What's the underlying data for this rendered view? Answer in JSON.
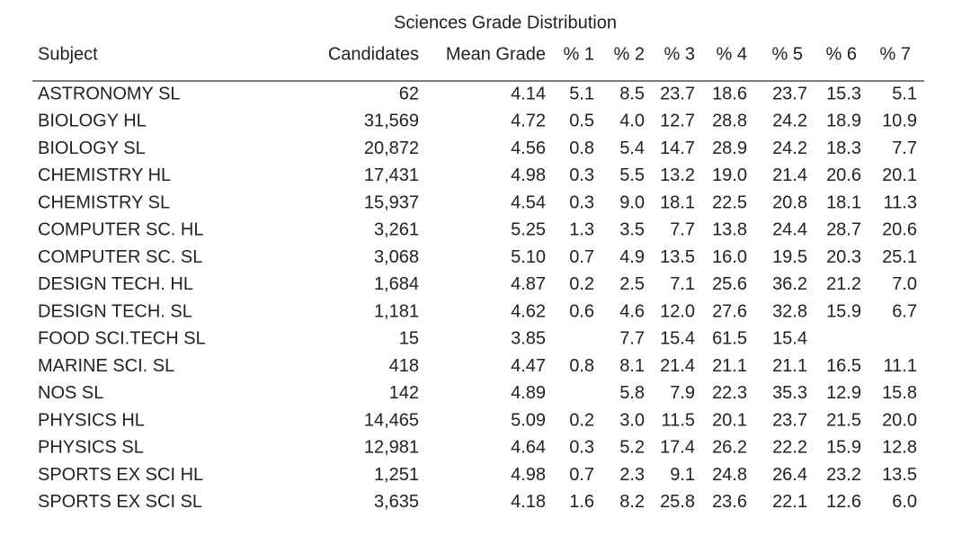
{
  "title": "Sciences Grade Distribution",
  "table": {
    "header": [
      "Subject",
      "Candidates",
      "Mean Grade",
      "% 1",
      "% 2",
      "% 3",
      "% 4",
      "% 5",
      "% 6",
      "% 7"
    ],
    "rows": [
      [
        "ASTRONOMY SL",
        "62",
        "4.14",
        "5.1",
        "8.5",
        "23.7",
        "18.6",
        "23.7",
        "15.3",
        "5.1"
      ],
      [
        "BIOLOGY HL",
        "31,569",
        "4.72",
        "0.5",
        "4.0",
        "12.7",
        "28.8",
        "24.2",
        "18.9",
        "10.9"
      ],
      [
        "BIOLOGY SL",
        "20,872",
        "4.56",
        "0.8",
        "5.4",
        "14.7",
        "28.9",
        "24.2",
        "18.3",
        "7.7"
      ],
      [
        "CHEMISTRY HL",
        "17,431",
        "4.98",
        "0.3",
        "5.5",
        "13.2",
        "19.0",
        "21.4",
        "20.6",
        "20.1"
      ],
      [
        "CHEMISTRY SL",
        "15,937",
        "4.54",
        "0.3",
        "9.0",
        "18.1",
        "22.5",
        "20.8",
        "18.1",
        "11.3"
      ],
      [
        "COMPUTER SC. HL",
        "3,261",
        "5.25",
        "1.3",
        "3.5",
        "7.7",
        "13.8",
        "24.4",
        "28.7",
        "20.6"
      ],
      [
        "COMPUTER SC. SL",
        "3,068",
        "5.10",
        "0.7",
        "4.9",
        "13.5",
        "16.0",
        "19.5",
        "20.3",
        "25.1"
      ],
      [
        "DESIGN TECH. HL",
        "1,684",
        "4.87",
        "0.2",
        "2.5",
        "7.1",
        "25.6",
        "36.2",
        "21.2",
        "7.0"
      ],
      [
        "DESIGN TECH. SL",
        "1,181",
        "4.62",
        "0.6",
        "4.6",
        "12.0",
        "27.6",
        "32.8",
        "15.9",
        "6.7"
      ],
      [
        "FOOD SCI.TECH SL",
        "15",
        "3.85",
        null,
        "7.7",
        "15.4",
        "61.5",
        "15.4",
        null,
        null
      ],
      [
        "MARINE SCI. SL",
        "418",
        "4.47",
        "0.8",
        "8.1",
        "21.4",
        "21.1",
        "21.1",
        "16.5",
        "11.1"
      ],
      [
        "NOS SL",
        "142",
        "4.89",
        null,
        "5.8",
        "7.9",
        "22.3",
        "35.3",
        "12.9",
        "15.8"
      ],
      [
        "PHYSICS HL",
        "14,465",
        "5.09",
        "0.2",
        "3.0",
        "11.5",
        "20.1",
        "23.7",
        "21.5",
        "20.0"
      ],
      [
        "PHYSICS SL",
        "12,981",
        "4.64",
        "0.3",
        "5.2",
        "17.4",
        "26.2",
        "22.2",
        "15.9",
        "12.8"
      ],
      [
        "SPORTS EX SCI HL",
        "1,251",
        "4.98",
        "0.7",
        "2.3",
        "9.1",
        "24.8",
        "26.4",
        "23.2",
        "13.5"
      ],
      [
        "SPORTS EX SCI SL",
        "3,635",
        "4.18",
        "1.6",
        "8.2",
        "25.8",
        "23.6",
        "22.1",
        "12.6",
        "6.0"
      ]
    ]
  }
}
